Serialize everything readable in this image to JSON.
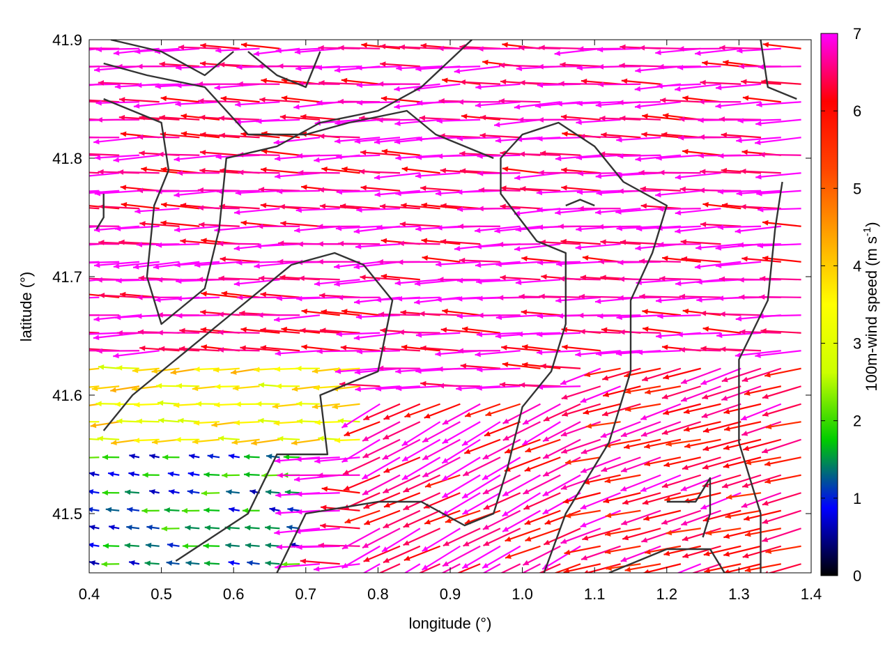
{
  "chart_data": {
    "type": "vector_field",
    "title": "",
    "xlabel": "longitude (°)",
    "ylabel": "latitude (°)",
    "xlim": [
      0.4,
      1.4
    ],
    "ylim": [
      41.45,
      41.9
    ],
    "xticks": [
      "0.4",
      "0.5",
      "0.6",
      "0.7",
      "0.8",
      "0.9",
      "1.0",
      "1.1",
      "1.2",
      "1.3",
      "1.4"
    ],
    "yticks": [
      "41.5",
      "41.6",
      "41.7",
      "41.8",
      "41.9"
    ],
    "colorbar": {
      "label": "100m-wind speed (m s-1)",
      "label_main": "100m-wind speed (m s",
      "label_sup": "-1",
      "label_end": ")",
      "min": 0,
      "max": 7,
      "ticks": [
        "0",
        "1",
        "2",
        "3",
        "4",
        "5",
        "6",
        "7"
      ],
      "palette": [
        "#000000",
        "#0000ff",
        "#00cc00",
        "#ccff00",
        "#ffff00",
        "#ffa500",
        "#ff4500",
        "#ff0000",
        "#ff00ff"
      ]
    },
    "grid": false,
    "legend": "colorbar-right",
    "wind_regions": [
      {
        "lon_min": 0.4,
        "lon_max": 1.4,
        "lat_min": 41.63,
        "lat_max": 41.9,
        "speed": 6.8,
        "dir_deg": 180
      },
      {
        "lon_min": 0.4,
        "lon_max": 0.8,
        "lat_min": 41.55,
        "lat_max": 41.63,
        "speed": 3.5,
        "dir_deg": 182
      },
      {
        "lon_min": 0.4,
        "lon_max": 0.7,
        "lat_min": 41.45,
        "lat_max": 41.55,
        "speed": 1.4,
        "dir_deg": 175
      },
      {
        "lon_min": 0.8,
        "lon_max": 1.1,
        "lat_min": 41.45,
        "lat_max": 41.6,
        "speed": 6.5,
        "dir_deg": 205
      },
      {
        "lon_min": 1.1,
        "lon_max": 1.4,
        "lat_min": 41.45,
        "lat_max": 41.63,
        "speed": 6.2,
        "dir_deg": 195
      }
    ],
    "contours": [
      [
        [
          0.42,
          41.88
        ],
        [
          0.48,
          41.87
        ],
        [
          0.56,
          41.86
        ],
        [
          0.62,
          41.82
        ],
        [
          0.7,
          41.82
        ],
        [
          0.76,
          41.83
        ],
        [
          0.84,
          41.84
        ],
        [
          0.88,
          41.82
        ],
        [
          0.96,
          41.8
        ]
      ],
      [
        [
          0.42,
          41.85
        ],
        [
          0.5,
          41.83
        ],
        [
          0.51,
          41.79
        ],
        [
          0.49,
          41.76
        ],
        [
          0.48,
          41.7
        ],
        [
          0.5,
          41.66
        ],
        [
          0.56,
          41.69
        ],
        [
          0.58,
          41.74
        ],
        [
          0.59,
          41.8
        ],
        [
          0.66,
          41.81
        ],
        [
          0.72,
          41.83
        ],
        [
          0.8,
          41.84
        ],
        [
          0.86,
          41.86
        ],
        [
          0.93,
          41.9
        ]
      ],
      [
        [
          0.42,
          41.57
        ],
        [
          0.46,
          41.6
        ],
        [
          0.52,
          41.63
        ],
        [
          0.6,
          41.67
        ],
        [
          0.68,
          41.71
        ],
        [
          0.74,
          41.72
        ],
        [
          0.78,
          41.71
        ],
        [
          0.82,
          41.68
        ],
        [
          0.8,
          41.62
        ],
        [
          0.72,
          41.6
        ],
        [
          0.73,
          41.55
        ],
        [
          0.66,
          41.55
        ],
        [
          0.62,
          41.5
        ],
        [
          0.52,
          41.46
        ]
      ],
      [
        [
          0.66,
          41.45
        ],
        [
          0.7,
          41.5
        ],
        [
          0.8,
          41.51
        ],
        [
          0.86,
          41.51
        ],
        [
          0.92,
          41.49
        ],
        [
          0.96,
          41.5
        ],
        [
          0.98,
          41.54
        ],
        [
          1.0,
          41.59
        ],
        [
          1.04,
          41.62
        ],
        [
          1.06,
          41.66
        ],
        [
          1.06,
          41.72
        ],
        [
          1.02,
          41.73
        ],
        [
          0.97,
          41.77
        ],
        [
          0.97,
          41.8
        ],
        [
          1.0,
          41.82
        ],
        [
          1.05,
          41.83
        ],
        [
          1.1,
          41.81
        ],
        [
          1.14,
          41.78
        ],
        [
          1.2,
          41.76
        ],
        [
          1.18,
          41.72
        ],
        [
          1.15,
          41.68
        ],
        [
          1.15,
          41.62
        ],
        [
          1.12,
          41.56
        ],
        [
          1.06,
          41.5
        ],
        [
          1.03,
          41.45
        ]
      ],
      [
        [
          1.33,
          41.44
        ],
        [
          1.33,
          41.5
        ],
        [
          1.3,
          41.56
        ],
        [
          1.3,
          41.63
        ],
        [
          1.34,
          41.68
        ],
        [
          1.35,
          41.74
        ],
        [
          1.36,
          41.78
        ]
      ],
      [
        [
          1.12,
          41.45
        ],
        [
          1.2,
          41.47
        ],
        [
          1.26,
          41.47
        ],
        [
          1.28,
          41.45
        ]
      ],
      [
        [
          1.2,
          41.51
        ],
        [
          1.24,
          41.51
        ],
        [
          1.26,
          41.53
        ],
        [
          1.26,
          41.5
        ],
        [
          1.25,
          41.48
        ]
      ],
      [
        [
          1.06,
          41.76
        ],
        [
          1.08,
          41.765
        ],
        [
          1.1,
          41.76
        ]
      ],
      [
        [
          0.62,
          41.89
        ],
        [
          0.66,
          41.87
        ],
        [
          0.7,
          41.86
        ],
        [
          0.72,
          41.89
        ]
      ],
      [
        [
          0.43,
          41.9
        ],
        [
          0.5,
          41.89
        ],
        [
          0.56,
          41.87
        ],
        [
          0.6,
          41.89
        ]
      ],
      [
        [
          1.33,
          41.9
        ],
        [
          1.34,
          41.86
        ],
        [
          1.38,
          41.85
        ]
      ],
      [
        [
          0.42,
          41.77
        ],
        [
          0.42,
          41.75
        ],
        [
          0.41,
          41.74
        ]
      ]
    ]
  }
}
